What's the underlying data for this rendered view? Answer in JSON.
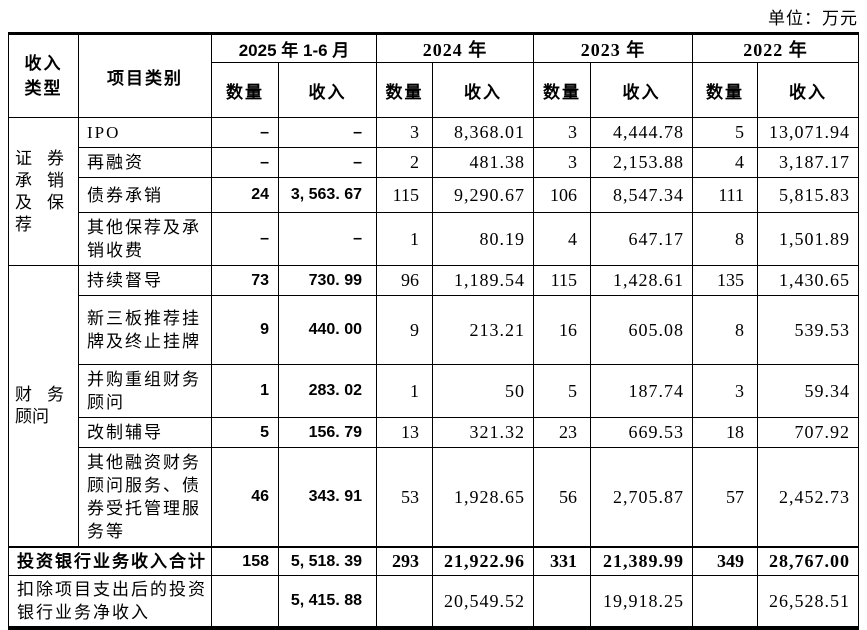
{
  "unit_label": "单位：万元",
  "header": {
    "income_type": "收入类型",
    "project_category": "项目类别",
    "periods": [
      "2025 年 1-6 月",
      "2024 年",
      "2023 年",
      "2022 年"
    ],
    "qty": "数量",
    "income": "收入"
  },
  "groups": [
    {
      "label": "证券承销及保荐",
      "rows": [
        {
          "category": "IPO",
          "cells": [
            "–",
            "–",
            "3",
            "8,368.01",
            "3",
            "4,444.78",
            "5",
            "13,071.94"
          ]
        },
        {
          "category": "再融资",
          "cells": [
            "–",
            "–",
            "2",
            "481.38",
            "3",
            "2,153.88",
            "4",
            "3,187.17"
          ]
        },
        {
          "category": "债券承销",
          "cells": [
            "24",
            "3, 563. 67",
            "115",
            "9,290.67",
            "106",
            "8,547.34",
            "111",
            "5,815.83"
          ]
        },
        {
          "category": "其他保荐及承销收费",
          "cells": [
            "–",
            "–",
            "1",
            "80.19",
            "4",
            "647.17",
            "8",
            "1,501.89"
          ]
        }
      ]
    },
    {
      "label": "财务顾问",
      "rows": [
        {
          "category": "持续督导",
          "cells": [
            "73",
            "730. 99",
            "96",
            "1,189.54",
            "115",
            "1,428.61",
            "135",
            "1,430.65"
          ]
        },
        {
          "category": "新三板推荐挂牌及终止挂牌",
          "cells": [
            "9",
            "440. 00",
            "9",
            "213.21",
            "16",
            "605.08",
            "8",
            "539.53"
          ]
        },
        {
          "category": "并购重组财务顾问",
          "cells": [
            "1",
            "283. 02",
            "1",
            "50",
            "5",
            "187.74",
            "3",
            "59.34"
          ]
        },
        {
          "category": "改制辅导",
          "cells": [
            "5",
            "156. 79",
            "13",
            "321.32",
            "23",
            "669.53",
            "18",
            "707.92"
          ]
        },
        {
          "category": "其他融资财务顾问服务、债券受托管理服务等",
          "cells": [
            "46",
            "343. 91",
            "53",
            "1,928.65",
            "56",
            "2,705.87",
            "57",
            "2,452.73"
          ]
        }
      ]
    }
  ],
  "total_row": {
    "label": "投资银行业务收入合计",
    "cells": [
      "158",
      "5, 518. 39",
      "293",
      "21,922.96",
      "331",
      "21,389.99",
      "349",
      "28,767.00"
    ]
  },
  "net_row": {
    "label": "扣除项目支出后的投资银行业务净收入",
    "cells": [
      "",
      "5, 415. 88",
      "",
      "20,549.52",
      "",
      "19,918.25",
      "",
      "26,528.51"
    ]
  }
}
